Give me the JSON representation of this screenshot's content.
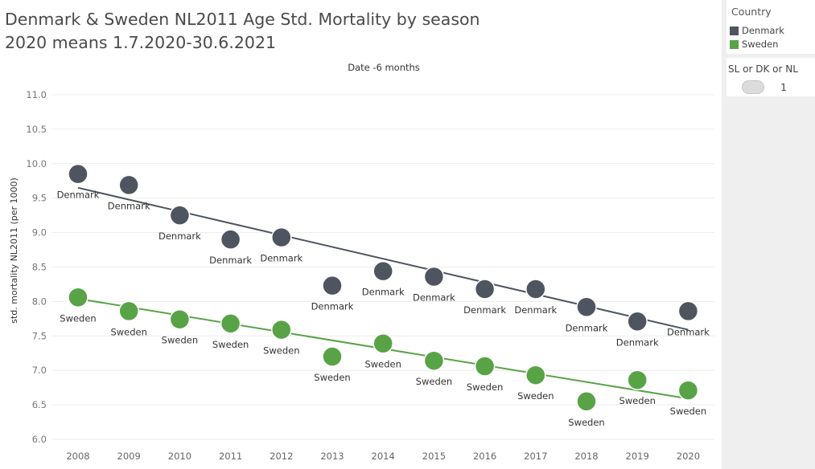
{
  "title": {
    "line1": "Denmark & Sweden NL2011 Age Std. Mortality by season",
    "line2": "2020 means 1.7.2020-30.6.2021"
  },
  "legend": {
    "title": "Country",
    "items": [
      {
        "label": "Denmark",
        "color": "#4e5561"
      },
      {
        "label": "Sweden",
        "color": "#59a347"
      }
    ]
  },
  "parameter": {
    "title": "SL or DK or NL",
    "value": "1"
  },
  "chart_data": {
    "type": "scatter",
    "title": "Date -6 months",
    "xlabel": "",
    "ylabel": "std. mortality NL2011 (per 1000)",
    "x": [
      "2008",
      "2009",
      "2010",
      "2011",
      "2012",
      "2013",
      "2014",
      "2015",
      "2016",
      "2017",
      "2018",
      "2019",
      "2020"
    ],
    "ylim": [
      6.0,
      11.0
    ],
    "yticks": [
      "11.0",
      "10.5",
      "10.0",
      "9.5",
      "9.0",
      "8.5",
      "8.0",
      "7.5",
      "7.0",
      "6.5",
      "6.0"
    ],
    "series": [
      {
        "name": "Denmark",
        "color": "#4e5561",
        "point_label": "Denmark",
        "values": [
          9.85,
          9.69,
          9.25,
          8.9,
          8.93,
          8.23,
          8.44,
          8.36,
          8.18,
          8.18,
          7.92,
          7.71,
          7.86
        ],
        "trend": [
          9.65,
          7.59
        ]
      },
      {
        "name": "Sweden",
        "color": "#59a347",
        "point_label": "Sweden",
        "values": [
          8.06,
          7.86,
          7.74,
          7.68,
          7.59,
          7.2,
          7.39,
          7.14,
          7.06,
          6.93,
          6.55,
          6.86,
          6.71
        ],
        "trend": [
          8.04,
          6.59
        ]
      }
    ],
    "grid": true
  }
}
